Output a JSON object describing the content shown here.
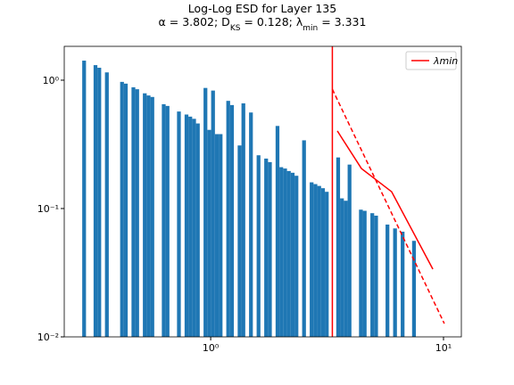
{
  "chart_data": {
    "type": "histogram",
    "title": "Log-Log ESD for Layer 135",
    "subtitle_parts": [
      "α = 3.802; D",
      "KS",
      " = 0.128; λ",
      "min",
      " = 3.331"
    ],
    "xscale": "log",
    "yscale": "log",
    "xlim": [
      0.235,
      11.93
    ],
    "ylim": [
      0.01,
      1.835
    ],
    "xticks": [
      {
        "value": 1,
        "label": "10⁰"
      },
      {
        "value": 10,
        "label": "10¹"
      }
    ],
    "yticks": [
      {
        "value": 0.01,
        "label": "10⁻²"
      },
      {
        "value": 0.1,
        "label": "10⁻¹"
      },
      {
        "value": 1,
        "label": "10⁰"
      }
    ],
    "color": "#1f77b4",
    "bins": [
      0.2807,
      0.2914,
      0.3026,
      0.3141,
      0.3261,
      0.3386,
      0.3515,
      0.365,
      0.3789,
      0.3934,
      0.4084,
      0.424,
      0.4402,
      0.457,
      0.4745,
      0.4926,
      0.5114,
      0.531,
      0.5513,
      0.5723,
      0.5942,
      0.6169,
      0.6405,
      0.665,
      0.6904,
      0.7168,
      0.7442,
      0.7726,
      0.8021,
      0.8328,
      0.8646,
      0.8976,
      0.9319,
      0.9675,
      1.0045,
      1.0429,
      1.0827,
      1.1241,
      1.1671,
      1.2117,
      1.258,
      1.3061,
      1.356,
      1.4078,
      1.4616,
      1.5174,
      1.5754,
      1.6356,
      1.6981,
      1.763,
      1.8304,
      1.9003,
      1.9729,
      2.0483,
      2.1266,
      2.2078,
      2.2922,
      2.3798,
      2.4707,
      2.5651,
      2.6631,
      2.7649,
      2.8705,
      2.9802,
      3.0941,
      3.2123,
      3.335,
      3.4624,
      3.5947,
      3.7321,
      3.8747,
      4.0227,
      4.1764,
      4.336,
      4.5017,
      4.6737,
      4.8522,
      5.0376,
      5.2301,
      5.4299,
      5.6374,
      5.8528,
      6.0764,
      6.3086,
      6.5496,
      6.7999,
      7.0597,
      7.3294,
      7.6094
    ],
    "values": [
      1.42,
      0,
      0,
      1.31,
      1.25,
      0,
      1.15,
      0,
      0,
      0,
      0.97,
      0.94,
      0,
      0.88,
      0.85,
      0,
      0.79,
      0.76,
      0.74,
      0,
      0,
      0.65,
      0.63,
      0,
      0,
      0.57,
      0,
      0.54,
      0.52,
      0.5,
      0.46,
      0,
      0.87,
      0.41,
      0.83,
      0.38,
      0.38,
      0,
      0.69,
      0.64,
      0,
      0.31,
      0.66,
      0,
      0.56,
      0,
      0.26,
      0,
      0.245,
      0.23,
      0,
      0.44,
      0.21,
      0.205,
      0.196,
      0.19,
      0.18,
      0,
      0.34,
      0,
      0.16,
      0.155,
      0.15,
      0.144,
      0.135,
      0,
      0,
      0.25,
      0.12,
      0.115,
      0.22,
      0,
      0,
      0.098,
      0.096,
      0,
      0.092,
      0.088,
      0,
      0,
      0.075,
      0,
      0.07,
      0,
      0.066,
      0,
      0,
      0.056
    ],
    "vline": {
      "name": "λmin",
      "value": 3.331,
      "color": "#ff0000"
    },
    "lines": [
      {
        "x": [
          3.5,
          4.44,
          5.99,
          9.0
        ],
        "values": [
          0.402,
          0.205,
          0.135,
          0.0337
        ],
        "color": "#ff0000",
        "dashed": false
      },
      {
        "x": [
          3.331,
          10.08
        ],
        "values": [
          0.85,
          0.0127
        ],
        "color": "#ff0000",
        "dashed": true
      }
    ],
    "legend": "upper right"
  }
}
